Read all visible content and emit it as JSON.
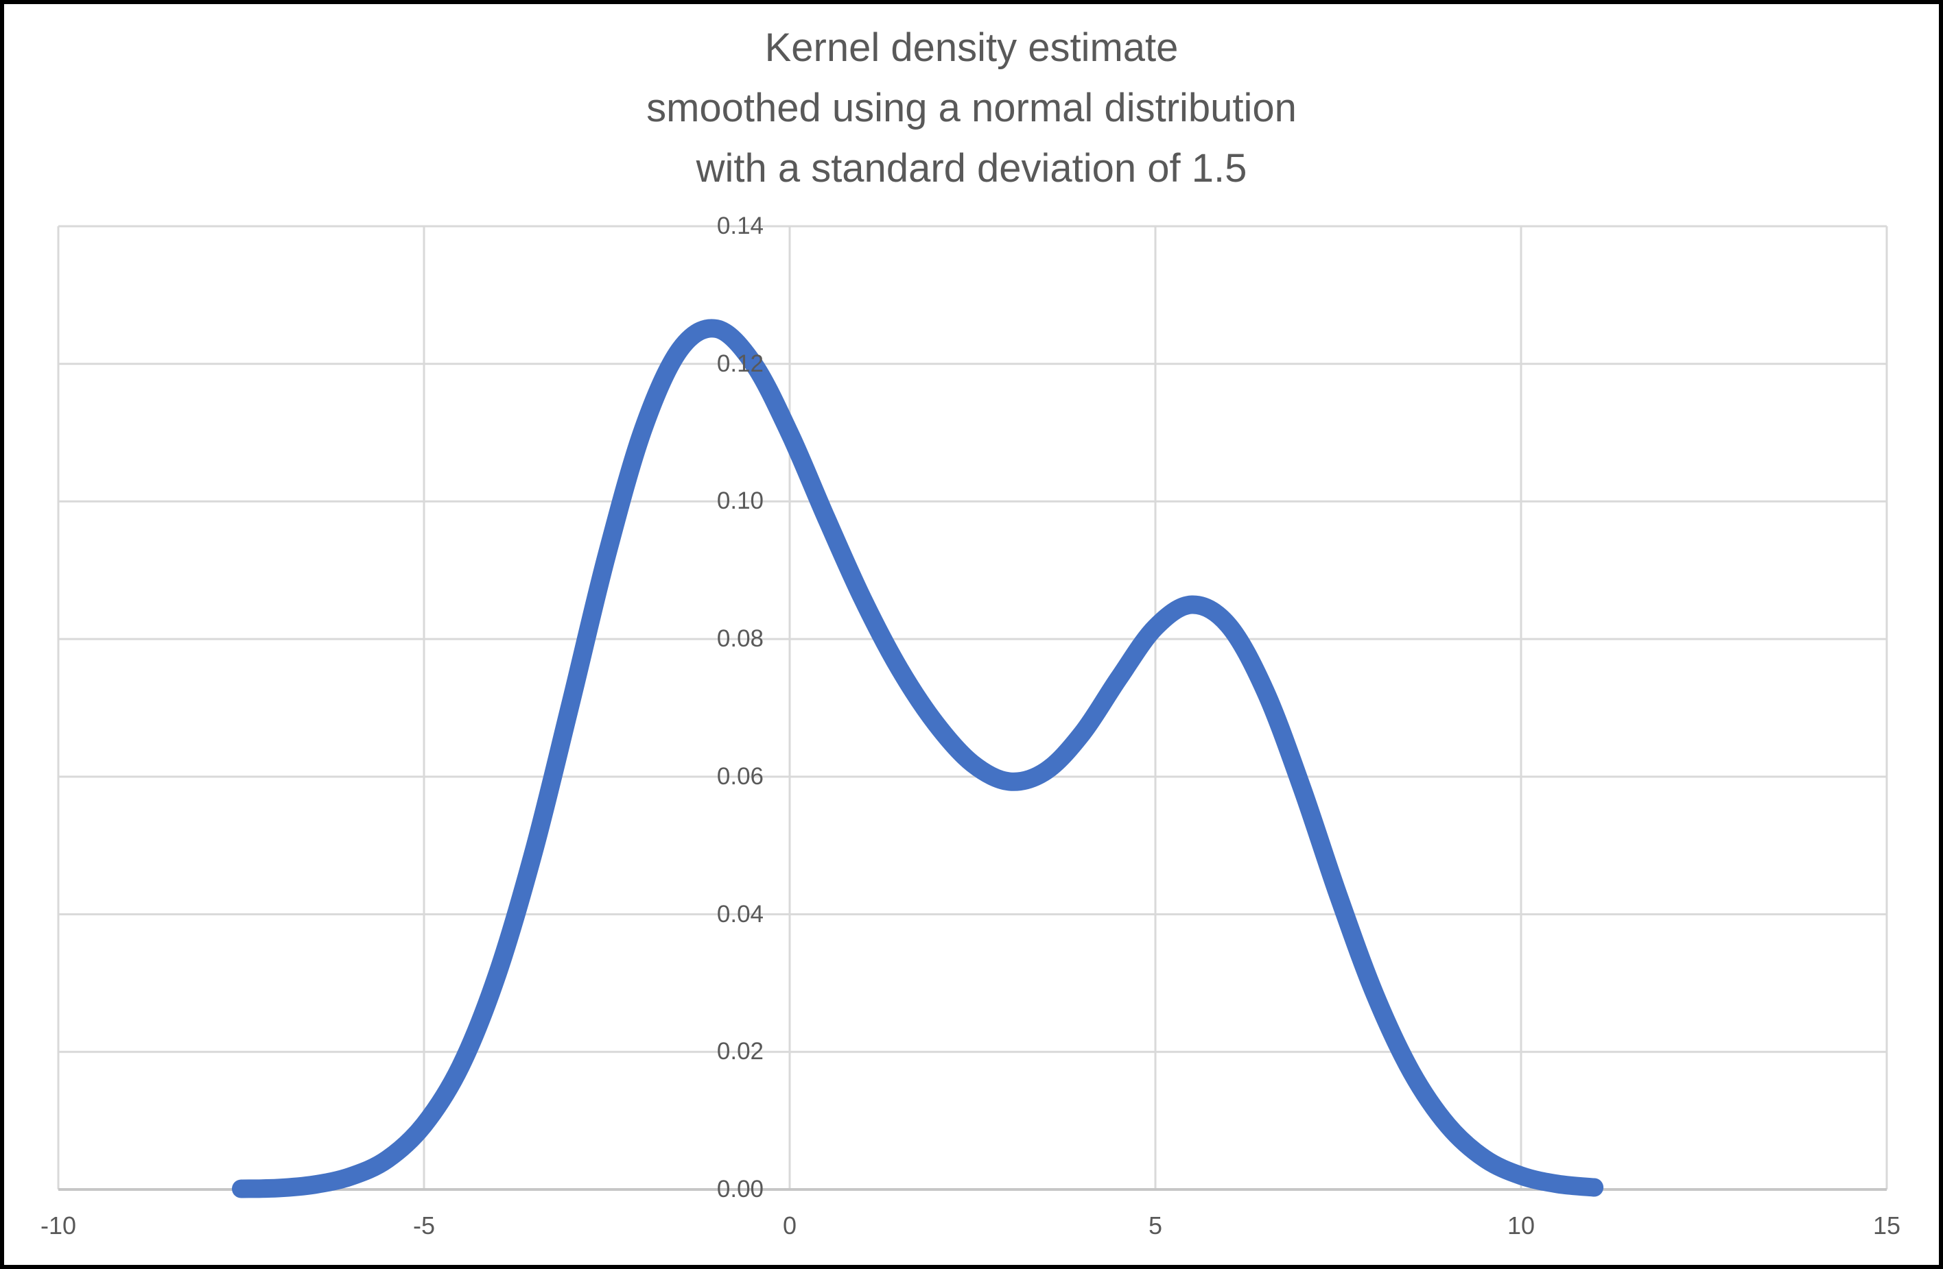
{
  "title_lines": [
    "Kernel density estimate",
    "smoothed using a normal distribution",
    "with a standard deviation of 1.5"
  ],
  "chart_data": {
    "type": "line",
    "title": "Kernel density estimate smoothed using a normal distribution with a standard deviation of 1.5",
    "xlabel": "",
    "ylabel": "",
    "xlim": [
      -10,
      15
    ],
    "ylim": [
      0,
      0.14
    ],
    "xticks": [
      -10,
      -5,
      0,
      5,
      10,
      15
    ],
    "xtick_labels": [
      "-10",
      "-5",
      "0",
      "5",
      "10",
      "15"
    ],
    "yticks": [
      0,
      0.02,
      0.04,
      0.06,
      0.08,
      0.1,
      0.12,
      0.14
    ],
    "ytick_labels": [
      "0.00",
      "0.02",
      "0.04",
      "0.06",
      "0.08",
      "0.10",
      "0.12",
      "0.14"
    ],
    "grid": true,
    "legend": "none",
    "x": [
      -7.5,
      -7,
      -6.5,
      -6,
      -5.5,
      -5,
      -4.5,
      -4,
      -3.5,
      -3,
      -2.5,
      -2,
      -1.5,
      -1,
      -0.5,
      0,
      0.5,
      1,
      1.5,
      2,
      2.5,
      3,
      3.5,
      4,
      4.5,
      5,
      5.5,
      6,
      6.5,
      7,
      7.5,
      8,
      8.5,
      9,
      9.5,
      10,
      10.5,
      11
    ],
    "series": [
      {
        "values": [
          0.0001,
          0.0002,
          0.0007,
          0.0019,
          0.0044,
          0.0094,
          0.0179,
          0.0312,
          0.0491,
          0.0704,
          0.0922,
          0.1106,
          0.1221,
          0.1251,
          0.1201,
          0.1099,
          0.0976,
          0.0858,
          0.0757,
          0.0677,
          0.0619,
          0.0593,
          0.0608,
          0.0663,
          0.0743,
          0.0817,
          0.085,
          0.082,
          0.0725,
          0.0585,
          0.0428,
          0.0284,
          0.0171,
          0.0093,
          0.0045,
          0.002,
          0.0008,
          0.0003
        ]
      }
    ],
    "colors": {
      "line": "#4472C4",
      "gridline": "#D9D9D9",
      "axis_line": "#C6C6C6",
      "label": "#595959",
      "title": "#595959",
      "background": "#FFFFFF",
      "frame": "#000000"
    }
  }
}
